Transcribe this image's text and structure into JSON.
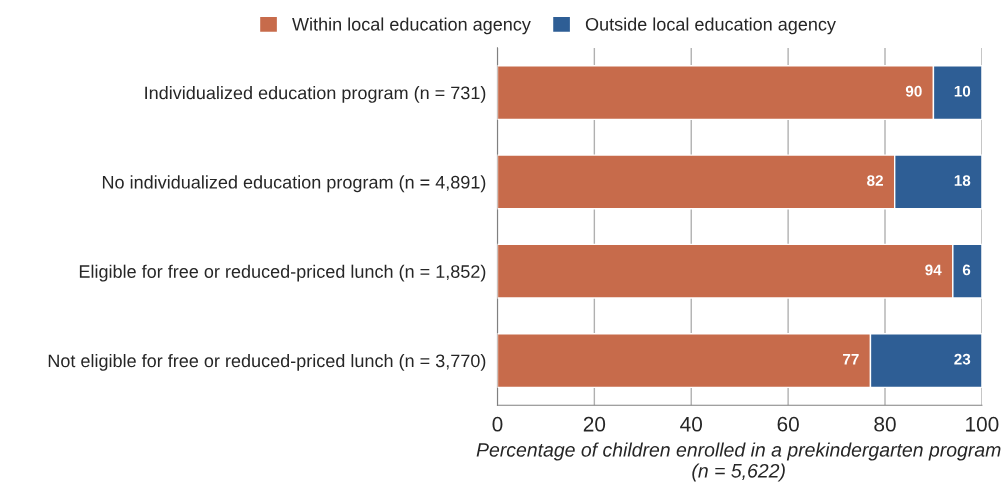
{
  "chart_data": {
    "type": "bar",
    "orientation": "horizontal",
    "stacked": true,
    "categories": [
      "Individualized education program (n = 731)",
      "No individualized education program (n = 4,891)",
      "Eligible for free or reduced-priced lunch (n = 1,852)",
      "Not eligible for free or reduced-priced lunch (n = 3,770)"
    ],
    "series": [
      {
        "name": "Within local education agency",
        "color": "#c76b4b",
        "values": [
          90,
          82,
          94,
          77
        ]
      },
      {
        "name": "Outside local education agency",
        "color": "#2e5e95",
        "values": [
          10,
          18,
          6,
          23
        ]
      }
    ],
    "xlim": [
      0,
      100
    ],
    "xticks": [
      0,
      20,
      40,
      60,
      80,
      100
    ],
    "xlabel": "Percentage of children enrolled in a prekindergarten program (n = 5,622)",
    "grid": "x",
    "legend": "top",
    "data_labels": true
  }
}
